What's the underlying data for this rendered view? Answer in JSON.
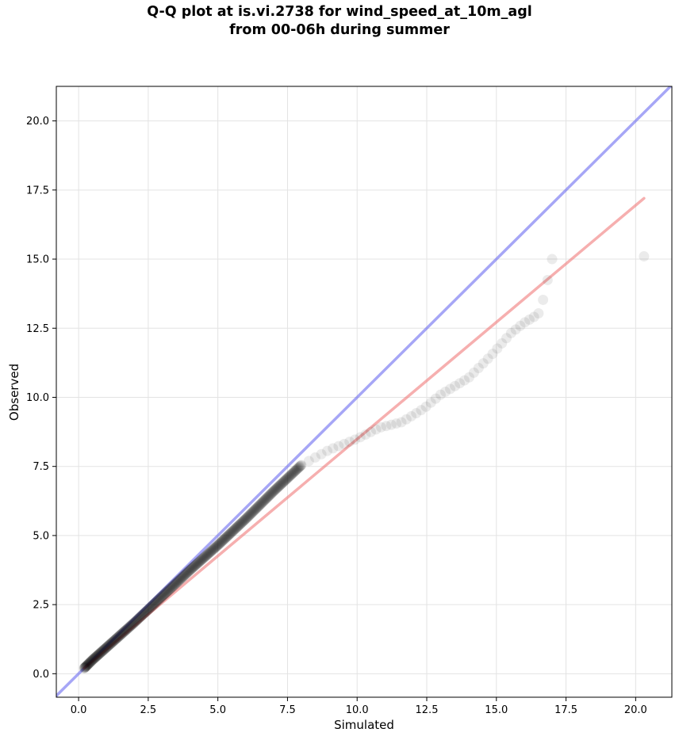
{
  "chart_data": {
    "type": "scatter",
    "title": "Q-Q plot at is.vi.2738 for wind_speed_at_10m_agl\nfrom 00-06h during summer",
    "xlabel": "Simulated",
    "ylabel": "Observed",
    "xlim": [
      -0.8,
      21.3
    ],
    "ylim": [
      -0.85,
      21.25
    ],
    "x_ticks": [
      0.0,
      2.5,
      5.0,
      7.5,
      10.0,
      12.5,
      15.0,
      17.5,
      20.0
    ],
    "x_tick_labels": [
      "0.0",
      "2.5",
      "5.0",
      "7.5",
      "10.0",
      "12.5",
      "15.0",
      "17.5",
      "20.0"
    ],
    "y_ticks": [
      0.0,
      2.5,
      5.0,
      7.5,
      10.0,
      12.5,
      15.0,
      17.5,
      20.0
    ],
    "y_tick_labels": [
      "0.0",
      "2.5",
      "5.0",
      "7.5",
      "10.0",
      "12.5",
      "15.0",
      "17.5",
      "20.0"
    ],
    "grid": true,
    "reference_lines": [
      {
        "kind": "identity",
        "color": "#6b6bf0",
        "x": [
          -0.8,
          21.3
        ],
        "y": [
          -0.8,
          21.3
        ]
      },
      {
        "kind": "fit",
        "color": "#f07a7a",
        "x": [
          0.2,
          20.3
        ],
        "y": [
          0.2,
          17.2
        ]
      }
    ],
    "point_color": "#000000",
    "quantile_anchors": {
      "x": [
        0.2,
        0.5,
        1.0,
        2.0,
        3.0,
        4.0,
        5.0,
        6.0,
        7.0,
        8.0,
        9.0,
        10.0,
        10.8,
        11.6,
        12.4,
        13.0,
        14.0,
        14.8,
        15.5,
        16.0,
        16.5,
        16.7,
        17.0,
        20.3
      ],
      "y": [
        0.2,
        0.5,
        0.95,
        1.85,
        2.8,
        3.75,
        4.65,
        5.6,
        6.6,
        7.55,
        8.1,
        8.5,
        8.9,
        9.1,
        9.6,
        10.1,
        10.7,
        11.5,
        12.3,
        12.7,
        13.0,
        13.6,
        15.0,
        15.1
      ]
    },
    "quantile_count": 500
  }
}
